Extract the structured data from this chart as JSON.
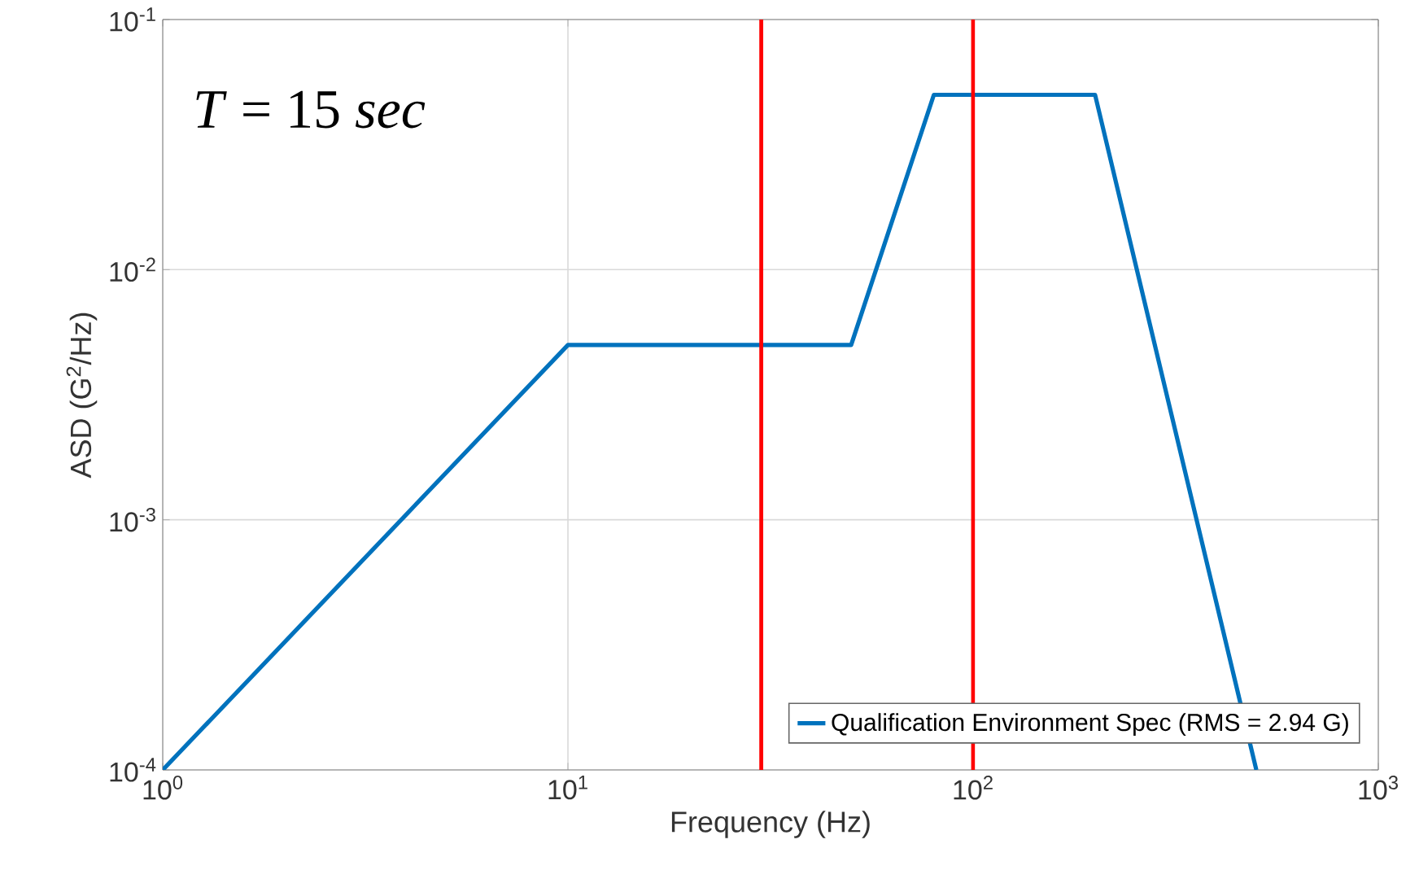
{
  "chart_data": {
    "type": "line",
    "xlabel": "Frequency (Hz)",
    "ylabel": "ASD (G$^{2}$/Hz)",
    "log": "xy",
    "grid": true,
    "legend": "bottom right",
    "xlim": [
      1,
      1000
    ],
    "ylim": [
      0.0001,
      0.1
    ],
    "xticks": [
      {
        "value": 1,
        "label": "10$^{0}$"
      },
      {
        "value": 10,
        "label": "10$^{1}$"
      },
      {
        "value": 100,
        "label": "10$^{2}$"
      },
      {
        "value": 1000,
        "label": "10$^{3}$"
      }
    ],
    "yticks": [
      {
        "value": 0.0001,
        "label": "10$^{-4}$"
      },
      {
        "value": 0.001,
        "label": "10$^{-3}$"
      },
      {
        "value": 0.01,
        "label": "10$^{-2}$"
      },
      {
        "value": 0.1,
        "label": "10$^{-1}$"
      }
    ],
    "series": [
      {
        "name": "Qualification Environment Spec (RMS = 2.94 G)",
        "color": "#0072bd",
        "x": [
          1,
          10,
          50,
          80,
          200,
          500
        ],
        "values": [
          0.0001,
          0.005,
          0.005,
          0.05,
          0.05,
          0.0001
        ]
      }
    ],
    "ref_lines": [
      {
        "axis": "x",
        "value": 30,
        "color": "#ff0000"
      },
      {
        "axis": "x",
        "value": 100,
        "color": "#ff0000"
      }
    ],
    "annotations": [
      "*T* = 15 *sec*"
    ]
  }
}
